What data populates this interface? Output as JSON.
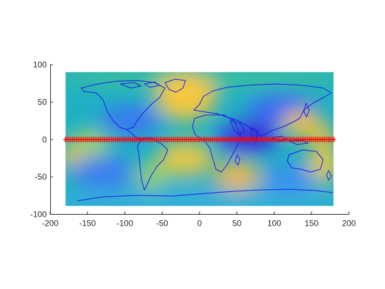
{
  "figure": {
    "type": "map",
    "field_colormap": "parula",
    "coastline_color": "#1a1ae6",
    "marker_color": "#ff0000",
    "axis_color": "#262626"
  },
  "chart_data": {
    "type": "scatter",
    "xlim": [
      -200,
      200
    ],
    "ylim": [
      -100,
      100
    ],
    "x_ticks": [
      -200,
      -150,
      -100,
      -50,
      0,
      50,
      100,
      150,
      200
    ],
    "y_ticks": [
      -100,
      -50,
      0,
      50,
      100
    ],
    "x_tick_labels": [
      "-200",
      "-150",
      "-100",
      "-50",
      "0",
      "50",
      "100",
      "150",
      "200"
    ],
    "y_tick_labels": [
      "-100",
      "-50",
      "0",
      "50",
      "100"
    ],
    "field_extent": {
      "lon": [
        -180,
        180
      ],
      "lat": [
        -90,
        90
      ]
    },
    "grid": false,
    "legend": false,
    "title": "",
    "xlabel": "",
    "ylabel": "",
    "markers": {
      "symbol": "+",
      "lat": 0,
      "lon_range": [
        -180,
        180
      ],
      "lon_step": 2.5
    }
  }
}
